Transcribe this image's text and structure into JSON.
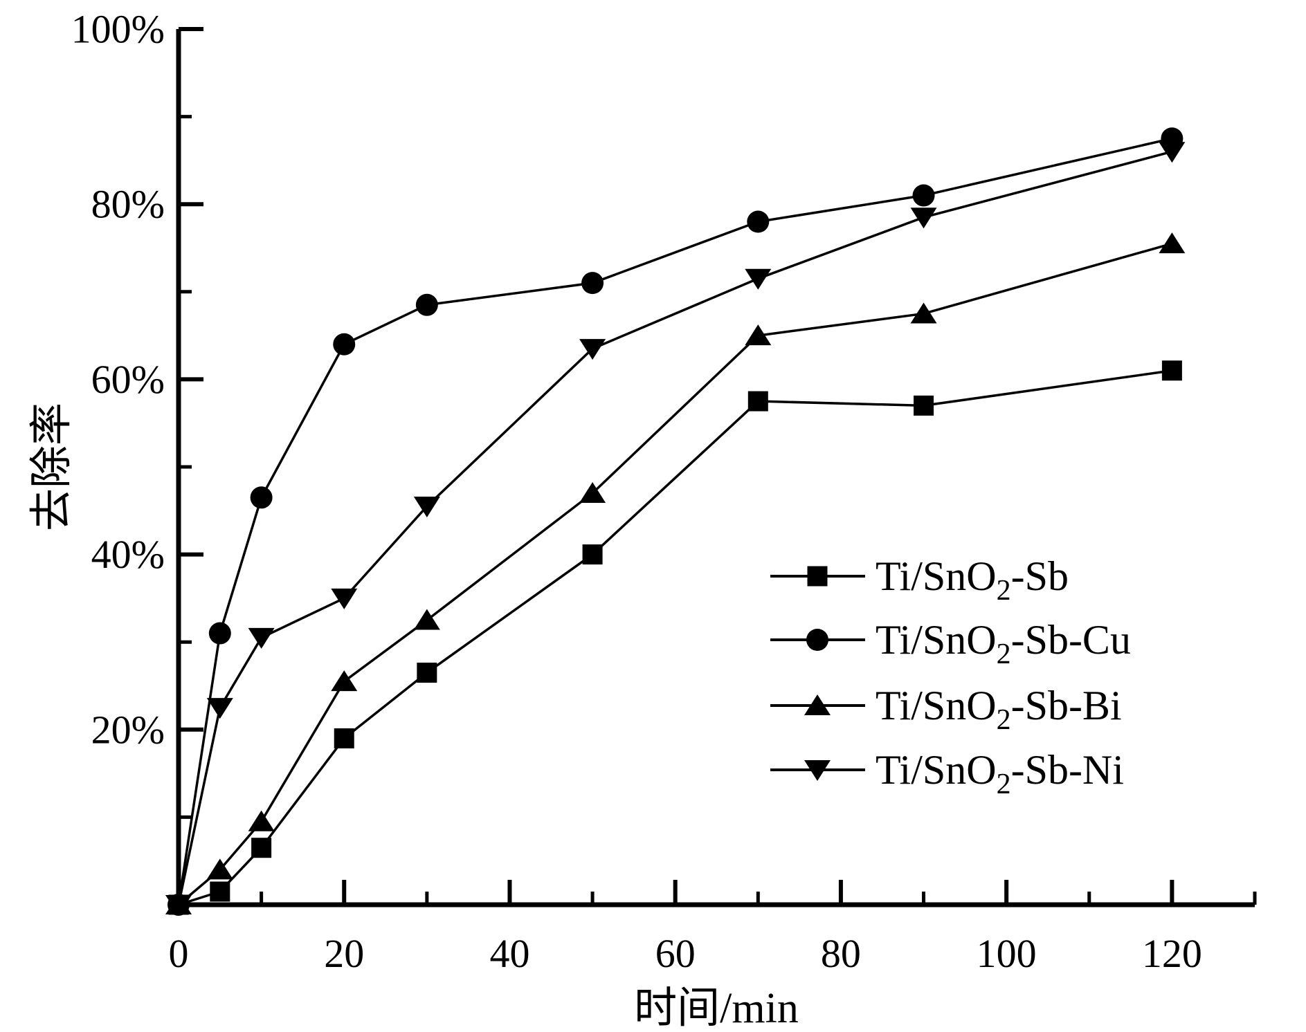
{
  "figure": {
    "background_color": "#ffffff",
    "foreground_color": "#000000"
  },
  "chart_data": {
    "type": "line",
    "title": "",
    "xlabel": "时间/min",
    "ylabel": "去除率",
    "xlim": [
      0,
      130
    ],
    "ylim": [
      0,
      100
    ],
    "grid": "off",
    "legend_position": "inside-right-middle",
    "x_major_ticks": [
      0,
      20,
      40,
      60,
      80,
      100,
      120
    ],
    "x_minor_ticks": [
      10,
      30,
      50,
      70,
      90,
      110,
      130
    ],
    "x_tick_labels": [
      "0",
      "20",
      "40",
      "60",
      "80",
      "100",
      "120"
    ],
    "y_major_ticks": [
      20,
      40,
      60,
      80,
      100
    ],
    "y_minor_ticks": [
      10,
      30,
      50,
      70,
      90
    ],
    "y_tick_labels": [
      "20%",
      "40%",
      "60%",
      "80%",
      "100%"
    ],
    "x": [
      0,
      5,
      10,
      20,
      30,
      50,
      70,
      90,
      120
    ],
    "series": [
      {
        "name": "Ti/SnO2-Sb",
        "marker": "square",
        "label": {
          "prefix": "Ti/SnO",
          "sub": "2",
          "suffix": "-Sb"
        },
        "values": [
          0,
          1.5,
          6.5,
          19,
          26.5,
          40,
          57.5,
          57,
          61
        ]
      },
      {
        "name": "Ti/SnO2-Sb-Cu",
        "marker": "circle",
        "label": {
          "prefix": "Ti/SnO",
          "sub": "2",
          "suffix": "-Sb-Cu"
        },
        "values": [
          0,
          31,
          46.5,
          64,
          68.5,
          71,
          78,
          81,
          87.5
        ]
      },
      {
        "name": "Ti/SnO2-Sb-Bi",
        "marker": "triangle-up",
        "label": {
          "prefix": "Ti/SnO",
          "sub": "2",
          "suffix": "-Sb-Bi"
        },
        "values": [
          0,
          4,
          9.5,
          25.5,
          32.5,
          47,
          65,
          67.5,
          75.5
        ]
      },
      {
        "name": "Ti/SnO2-Sb-Ni",
        "marker": "triangle-down",
        "label": {
          "prefix": "Ti/SnO",
          "sub": "2",
          "suffix": "-Sb-Ni"
        },
        "values": [
          0,
          22.5,
          30.5,
          35,
          45.5,
          63.5,
          71.5,
          78.5,
          86
        ]
      }
    ]
  }
}
